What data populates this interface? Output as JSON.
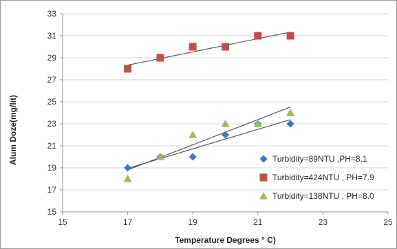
{
  "chart_data": {
    "type": "scatter",
    "title": "",
    "xlabel": "Temperature Degrees ° C)",
    "ylabel": "Alum Doze(mg/lit)",
    "xlim": [
      15,
      25
    ],
    "ylim": [
      15,
      33
    ],
    "xticks": [
      "15",
      "17",
      "19",
      "21",
      "23",
      "25"
    ],
    "yticks": [
      "15",
      "17",
      "19",
      "21",
      "23",
      "25",
      "27",
      "29",
      "31",
      "33"
    ],
    "grid": "horizontal",
    "legend_position": "right",
    "trendlines": "linear",
    "series": [
      {
        "name": "Turbidity=89NTU ,PH=8.1",
        "marker": "diamond",
        "color": "#4472c4",
        "points": [
          [
            17,
            19
          ],
          [
            18,
            20
          ],
          [
            19,
            20
          ],
          [
            20,
            22
          ],
          [
            21,
            23
          ],
          [
            22,
            23
          ]
        ]
      },
      {
        "name": "Turbidity=424NTU , PH=7.9",
        "marker": "square",
        "color": "#c0504d",
        "points": [
          [
            17,
            28
          ],
          [
            18,
            29
          ],
          [
            19,
            30
          ],
          [
            20,
            30
          ],
          [
            21,
            31
          ],
          [
            22,
            31
          ]
        ]
      },
      {
        "name": "Turbidity=138NTU , PH=8.0",
        "marker": "triangle",
        "color": "#9bbb59",
        "points": [
          [
            17,
            18
          ],
          [
            18,
            20
          ],
          [
            19,
            22
          ],
          [
            20,
            23
          ],
          [
            21,
            23
          ],
          [
            22,
            24
          ]
        ]
      }
    ]
  }
}
